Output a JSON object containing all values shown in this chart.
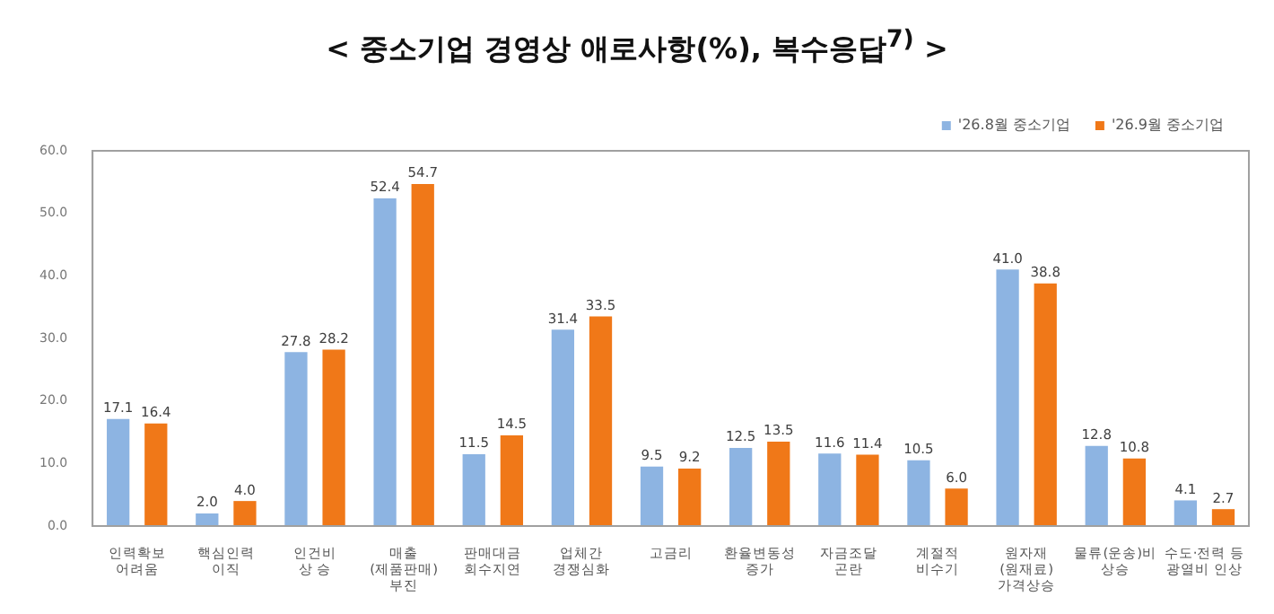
{
  "chart_data": {
    "type": "bar",
    "title": "< 중소기업 경영상 애로사항(%), 복수응답$^{7)}$ >",
    "categories": [
      "인력확보\n어려움",
      "핵심인력\n이직",
      "인건비\n상 승",
      "매출\n(제품판매)\n부진",
      "판매대금\n회수지연",
      "업체간\n경쟁심화",
      "고금리",
      "환율변동성\n증가",
      "자금조달\n곤란",
      "계절적\n비수기",
      "원자재\n(원재료)\n가격상승",
      "물류(운송)비\n상승",
      "수도·전력 등\n광열비 인상"
    ],
    "series": [
      {
        "name": "'26.8월 중소기업",
        "color": "#8db4e2",
        "values": [
          17.1,
          2.0,
          27.8,
          52.4,
          11.5,
          31.4,
          9.5,
          12.5,
          11.6,
          10.5,
          41.0,
          12.8,
          4.1
        ],
        "value_labels": [
          "17.1",
          "2.0",
          "27.8",
          "52.4",
          "11.5",
          "31.4",
          "9.5",
          "12.5",
          "11.6",
          "10.5",
          "41.0",
          "12.8",
          "4.1"
        ]
      },
      {
        "name": "'26.9월 중소기업",
        "color": "#f07818",
        "values": [
          16.4,
          4.0,
          28.2,
          54.7,
          14.5,
          33.5,
          9.2,
          13.5,
          11.4,
          6.0,
          38.8,
          10.8,
          2.7
        ],
        "value_labels": [
          "16.4",
          "4.0",
          "28.2",
          "54.7",
          "14.5",
          "33.5",
          "9.2",
          "13.5",
          "11.4",
          "6.0",
          "38.8",
          "10.8",
          "2.7"
        ]
      }
    ],
    "ylim": [
      0,
      60
    ],
    "yticks": [
      {
        "value": 0,
        "label": "0.0"
      },
      {
        "value": 10,
        "label": "10.0"
      },
      {
        "value": 20,
        "label": "20.0"
      },
      {
        "value": 30,
        "label": "30.0"
      },
      {
        "value": 40,
        "label": "40.0"
      },
      {
        "value": 50,
        "label": "50.0"
      },
      {
        "value": 60,
        "label": "60.0"
      }
    ],
    "grid": false,
    "legend": "top right"
  }
}
